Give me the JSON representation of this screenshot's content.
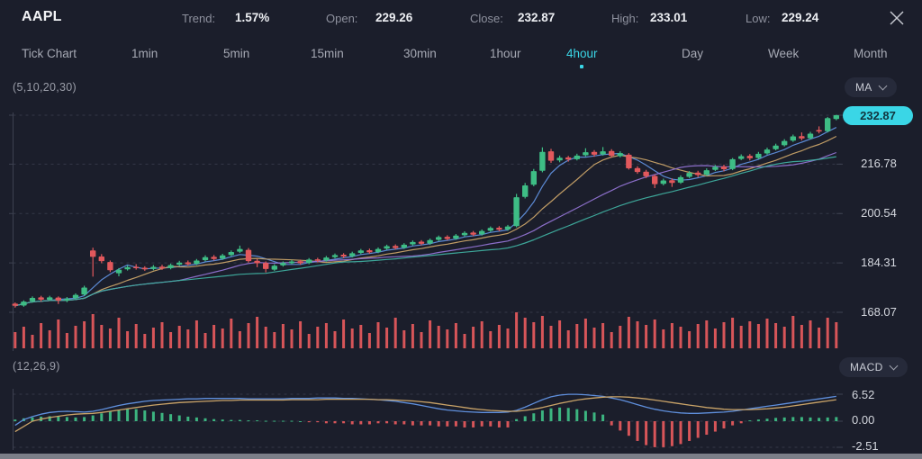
{
  "header": {
    "symbol": "AAPL",
    "stats": [
      {
        "label": "Trend:",
        "value": "1.57%"
      },
      {
        "label": "Open:",
        "value": "229.26"
      },
      {
        "label": "Close:",
        "value": "232.87"
      },
      {
        "label": "High:",
        "value": "233.01"
      },
      {
        "label": "Low:",
        "value": "229.24"
      }
    ]
  },
  "timeframes": {
    "items": [
      "Tick Chart",
      "1min",
      "5min",
      "15min",
      "30min",
      "1hour",
      "4hour",
      "Day",
      "Week",
      "Month"
    ],
    "active": "4hour"
  },
  "main_chart": {
    "indicator_label": "(5,10,20,30)",
    "indicator_selector": "MA",
    "current_price": "232.87",
    "axis_labels": [
      "216.78",
      "200.54",
      "184.31",
      "168.07"
    ]
  },
  "macd_panel": {
    "indicator_label": "(12,26,9)",
    "indicator_selector": "MACD",
    "axis_labels": [
      "6.52",
      "0.00",
      "-2.51"
    ]
  },
  "colors": {
    "accent": "#3ad6e6",
    "up": "#3ebd85",
    "down": "#e2585c",
    "volume": "#e2585c",
    "grid": "#4a4e5f",
    "axis_line": "#3d4150",
    "ma": [
      "#5f8fdc",
      "#c9a368",
      "#9173d2",
      "#3fae9f"
    ],
    "macd_line": "#5f8fdc",
    "signal_line": "#c9a368"
  },
  "chart_data": {
    "type": "candlestick",
    "symbol": "AAPL",
    "timeframe": "4hour",
    "price_axis": {
      "ticks": [
        232.87,
        216.78,
        200.54,
        184.31,
        168.07
      ]
    },
    "ma_periods": [
      5,
      10,
      20,
      30
    ],
    "candles_ohlc": [
      [
        170.9,
        171.3,
        169.6,
        170.2
      ],
      [
        170.3,
        172.0,
        169.9,
        171.6
      ],
      [
        171.7,
        173.3,
        171.2,
        172.8
      ],
      [
        173.0,
        173.5,
        171.6,
        172.2
      ],
      [
        172.2,
        173.5,
        171.8,
        173.0
      ],
      [
        172.9,
        173.3,
        170.8,
        171.9
      ],
      [
        171.9,
        173.1,
        171.4,
        172.6
      ],
      [
        172.7,
        174.3,
        172.2,
        173.8
      ],
      [
        173.9,
        176.8,
        173.5,
        176.2
      ],
      [
        188.4,
        189.3,
        179.8,
        186.3
      ],
      [
        186.4,
        187.2,
        184.2,
        184.9
      ],
      [
        184.6,
        185.1,
        181.3,
        181.9
      ],
      [
        180.9,
        182.6,
        179.9,
        182.1
      ],
      [
        182.2,
        183.5,
        181.8,
        182.9
      ],
      [
        183.0,
        183.9,
        182.1,
        182.6
      ],
      [
        182.7,
        183.2,
        181.7,
        182.2
      ],
      [
        182.3,
        183.6,
        181.9,
        183.0
      ],
      [
        183.1,
        183.7,
        182.0,
        182.5
      ],
      [
        182.6,
        184.1,
        182.2,
        183.6
      ],
      [
        183.7,
        185.0,
        183.3,
        184.4
      ],
      [
        184.5,
        185.1,
        183.4,
        183.9
      ],
      [
        184.0,
        185.6,
        183.6,
        185.1
      ],
      [
        185.2,
        186.8,
        184.8,
        186.2
      ],
      [
        186.3,
        186.9,
        185.1,
        185.6
      ],
      [
        185.7,
        187.3,
        185.3,
        186.8
      ],
      [
        186.9,
        188.4,
        186.5,
        187.9
      ],
      [
        188.0,
        190.0,
        187.6,
        188.9
      ],
      [
        188.6,
        189.2,
        184.4,
        184.9
      ],
      [
        185.0,
        185.6,
        182.9,
        184.2
      ],
      [
        184.3,
        184.8,
        181.2,
        182.3
      ],
      [
        182.1,
        183.9,
        181.7,
        183.4
      ],
      [
        183.5,
        184.8,
        183.1,
        184.3
      ],
      [
        184.2,
        185.3,
        183.8,
        184.8
      ],
      [
        184.9,
        185.4,
        183.7,
        184.2
      ],
      [
        184.3,
        185.9,
        183.9,
        185.4
      ],
      [
        185.5,
        186.0,
        184.5,
        185.0
      ],
      [
        185.1,
        186.6,
        184.7,
        186.1
      ],
      [
        186.2,
        187.4,
        185.8,
        186.9
      ],
      [
        187.0,
        187.5,
        185.9,
        186.4
      ],
      [
        186.5,
        188.0,
        186.1,
        187.5
      ],
      [
        187.6,
        188.9,
        187.2,
        188.4
      ],
      [
        188.5,
        189.0,
        187.3,
        187.8
      ],
      [
        187.9,
        189.4,
        187.5,
        188.9
      ],
      [
        189.0,
        190.3,
        188.6,
        189.8
      ],
      [
        189.9,
        190.4,
        188.7,
        189.2
      ],
      [
        189.3,
        190.8,
        188.9,
        190.3
      ],
      [
        190.4,
        191.7,
        190.0,
        191.2
      ],
      [
        191.3,
        191.8,
        190.1,
        190.6
      ],
      [
        190.7,
        192.3,
        190.3,
        191.8
      ],
      [
        191.9,
        193.3,
        191.5,
        192.8
      ],
      [
        192.9,
        193.4,
        191.7,
        192.2
      ],
      [
        192.3,
        193.8,
        191.9,
        193.3
      ],
      [
        193.4,
        194.7,
        193.0,
        194.2
      ],
      [
        194.3,
        194.8,
        193.1,
        193.6
      ],
      [
        193.7,
        195.3,
        193.3,
        194.8
      ],
      [
        194.9,
        196.3,
        194.5,
        195.8
      ],
      [
        195.9,
        196.4,
        194.7,
        195.2
      ],
      [
        195.3,
        196.8,
        194.9,
        196.3
      ],
      [
        196.4,
        207.0,
        196.0,
        205.9
      ],
      [
        206.0,
        210.6,
        205.5,
        209.8
      ],
      [
        210.0,
        215.2,
        209.5,
        214.5
      ],
      [
        214.6,
        222.3,
        214.1,
        220.8
      ],
      [
        221.0,
        221.8,
        217.2,
        217.9
      ],
      [
        218.0,
        219.6,
        217.4,
        218.9
      ],
      [
        219.0,
        219.5,
        217.6,
        218.3
      ],
      [
        218.4,
        220.2,
        218.0,
        219.6
      ],
      [
        219.7,
        222.0,
        219.3,
        220.7
      ],
      [
        220.8,
        221.4,
        219.2,
        219.9
      ],
      [
        220.0,
        222.4,
        219.6,
        221.0
      ],
      [
        221.1,
        221.7,
        218.9,
        219.5
      ],
      [
        219.4,
        221.0,
        219.0,
        220.4
      ],
      [
        219.9,
        220.4,
        215.0,
        215.4
      ],
      [
        215.5,
        216.1,
        213.6,
        214.2
      ],
      [
        214.3,
        214.9,
        212.2,
        212.8
      ],
      [
        212.9,
        213.4,
        208.9,
        210.2
      ],
      [
        210.3,
        212.0,
        209.8,
        211.4
      ],
      [
        211.5,
        212.1,
        209.3,
        210.6
      ],
      [
        210.7,
        213.1,
        210.3,
        212.5
      ],
      [
        212.6,
        214.5,
        212.2,
        213.9
      ],
      [
        214.0,
        214.6,
        212.5,
        213.2
      ],
      [
        213.3,
        215.4,
        212.9,
        214.8
      ],
      [
        214.9,
        216.5,
        214.5,
        215.9
      ],
      [
        216.0,
        216.6,
        214.4,
        215.1
      ],
      [
        215.2,
        218.8,
        214.8,
        218.4
      ],
      [
        218.5,
        220.0,
        218.1,
        219.4
      ],
      [
        219.5,
        220.1,
        218.0,
        218.7
      ],
      [
        218.8,
        220.8,
        218.4,
        220.2
      ],
      [
        220.3,
        222.2,
        219.9,
        221.6
      ],
      [
        221.7,
        223.5,
        221.3,
        222.9
      ],
      [
        223.0,
        225.0,
        222.6,
        224.4
      ],
      [
        224.5,
        226.5,
        224.1,
        225.9
      ],
      [
        226.0,
        227.2,
        224.6,
        225.2
      ],
      [
        225.3,
        227.4,
        224.9,
        226.8
      ],
      [
        228.0,
        229.2,
        226.9,
        227.5
      ],
      [
        227.6,
        232.3,
        227.2,
        231.9
      ],
      [
        231.6,
        233.01,
        231.2,
        232.87
      ]
    ],
    "volume": [
      18,
      24,
      15,
      28,
      20,
      32,
      17,
      25,
      30,
      38,
      26,
      22,
      34,
      19,
      27,
      16,
      23,
      29,
      18,
      25,
      21,
      31,
      17,
      26,
      22,
      33,
      19,
      28,
      35,
      24,
      18,
      27,
      21,
      30,
      16,
      24,
      28,
      19,
      32,
      22,
      26,
      17,
      29,
      23,
      34,
      20,
      27,
      18,
      31,
      25,
      21,
      28,
      16,
      24,
      30,
      19,
      26,
      22,
      40,
      34,
      29,
      36,
      25,
      31,
      20,
      27,
      33,
      23,
      28,
      18,
      25,
      35,
      30,
      26,
      32,
      21,
      28,
      24,
      19,
      27,
      31,
      22,
      29,
      34,
      25,
      30,
      27,
      33,
      28,
      24,
      36,
      26,
      31,
      23,
      34,
      29
    ],
    "macd": {
      "params": [
        12,
        26,
        9
      ],
      "axis_ticks": [
        6.52,
        0.0,
        -2.51
      ],
      "histogram": [
        0.4,
        0.7,
        0.9,
        1.1,
        1.2,
        1.1,
        1.0,
        0.9,
        1.0,
        1.4,
        1.9,
        2.4,
        2.8,
        3.0,
        2.9,
        2.6,
        2.3,
        2.0,
        1.7,
        1.4,
        1.1,
        0.9,
        0.7,
        0.5,
        0.4,
        0.3,
        0.3,
        0.2,
        0.2,
        0.1,
        0.1,
        0.1,
        0.1,
        0.0,
        -0.1,
        -0.1,
        -0.2,
        -0.2,
        -0.2,
        -0.3,
        -0.3,
        -0.3,
        -0.2,
        -0.2,
        -0.3,
        -0.3,
        -0.4,
        -0.4,
        -0.4,
        -0.5,
        -0.5,
        -0.5,
        -0.6,
        -0.6,
        -0.5,
        -0.5,
        -0.6,
        -0.6,
        0.5,
        1.2,
        1.9,
        2.6,
        3.1,
        3.3,
        3.2,
        2.9,
        2.5,
        2.1,
        1.6,
        -0.4,
        -0.9,
        -1.4,
        -1.9,
        -2.3,
        -2.5,
        -2.5,
        -2.4,
        -2.2,
        -1.9,
        -1.6,
        -1.3,
        -1.0,
        -0.7,
        -0.4,
        -0.2,
        0.2,
        0.4,
        0.6,
        0.8,
        0.9,
        1.0,
        1.0,
        0.9,
        0.8,
        0.9,
        1.0
      ],
      "macd_line": [
        -0.4,
        0.4,
        1.1,
        1.7,
        2.1,
        2.3,
        2.4,
        2.3,
        2.2,
        2.4,
        2.8,
        3.3,
        3.8,
        4.2,
        4.5,
        4.8,
        5.0,
        5.1,
        5.2,
        5.3,
        5.4,
        5.4,
        5.5,
        5.5,
        5.5,
        5.5,
        5.5,
        5.4,
        5.4,
        5.4,
        5.4,
        5.4,
        5.5,
        5.5,
        5.5,
        5.6,
        5.6,
        5.6,
        5.5,
        5.5,
        5.4,
        5.3,
        5.2,
        5.0,
        4.8,
        4.5,
        4.2,
        3.8,
        3.4,
        3.0,
        2.7,
        2.5,
        2.3,
        2.2,
        2.1,
        2.1,
        2.1,
        2.2,
        2.6,
        3.4,
        4.3,
        5.2,
        5.9,
        6.3,
        6.5,
        6.5,
        6.4,
        6.2,
        6.0,
        5.6,
        5.2,
        4.6,
        4.0,
        3.4,
        2.9,
        2.5,
        2.2,
        2.0,
        1.9,
        1.9,
        2.0,
        2.1,
        2.2,
        2.4,
        2.7,
        3.0,
        3.3,
        3.6,
        3.9,
        4.2,
        4.5,
        4.8,
        5.1,
        5.4,
        5.7,
        6.0
      ],
      "signal_line": [
        -1.0,
        -0.5,
        0.0,
        0.5,
        0.9,
        1.2,
        1.5,
        1.7,
        1.8,
        1.9,
        2.1,
        2.4,
        2.7,
        3.0,
        3.3,
        3.6,
        3.9,
        4.1,
        4.3,
        4.5,
        4.6,
        4.7,
        4.8,
        4.9,
        5.0,
        5.0,
        5.1,
        5.1,
        5.1,
        5.1,
        5.1,
        5.1,
        5.2,
        5.2,
        5.2,
        5.2,
        5.3,
        5.3,
        5.3,
        5.3,
        5.3,
        5.3,
        5.2,
        5.2,
        5.1,
        5.0,
        4.9,
        4.7,
        4.5,
        4.2,
        3.9,
        3.6,
        3.3,
        3.0,
        2.8,
        2.6,
        2.5,
        2.4,
        2.4,
        2.6,
        2.9,
        3.3,
        3.8,
        4.3,
        4.7,
        5.1,
        5.4,
        5.6,
        5.8,
        5.9,
        5.9,
        5.8,
        5.6,
        5.4,
        5.1,
        4.8,
        4.5,
        4.2,
        3.9,
        3.6,
        3.3,
        3.1,
        2.9,
        2.8,
        2.8,
        2.8,
        2.9,
        3.0,
        3.2,
        3.4,
        3.7,
        4.0,
        4.3,
        4.6,
        4.9,
        5.2
      ]
    }
  }
}
